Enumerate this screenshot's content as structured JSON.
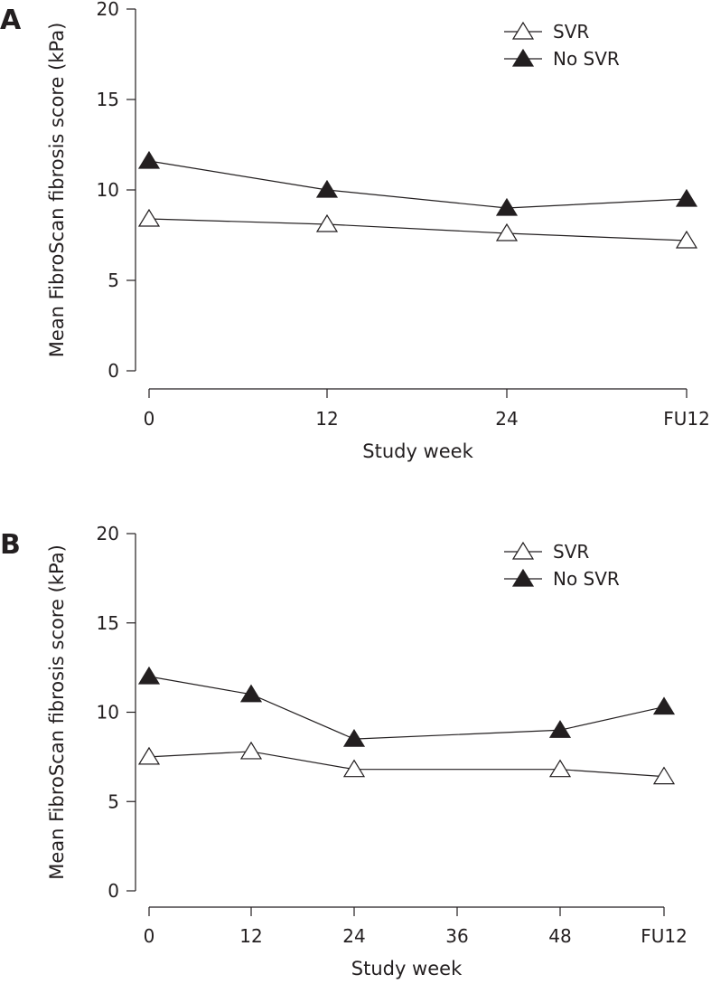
{
  "chart_data": [
    {
      "type": "line",
      "panel": "A",
      "xlabel": "Study week",
      "ylabel": "Mean FibroScan fibrosis score (kPa)",
      "ylim": [
        0,
        20
      ],
      "yticks": [
        "0",
        "5",
        "10",
        "15",
        "20"
      ],
      "categories": [
        "0",
        "12",
        "24",
        "FU12"
      ],
      "legend_position": "top-right",
      "series": [
        {
          "name": "SVR",
          "marker": "open-triangle",
          "values": [
            8.4,
            8.1,
            7.6,
            7.2
          ]
        },
        {
          "name": "No SVR",
          "marker": "filled-triangle",
          "values": [
            11.6,
            10.0,
            9.0,
            9.5
          ]
        }
      ]
    },
    {
      "type": "line",
      "panel": "B",
      "xlabel": "Study week",
      "ylabel": "Mean FibroScan fibrosis score (kPa)",
      "ylim": [
        0,
        20
      ],
      "yticks": [
        "0",
        "5",
        "10",
        "15",
        "20"
      ],
      "categories": [
        "0",
        "12",
        "24",
        "36",
        "48",
        "FU12"
      ],
      "legend_position": "top-right",
      "series": [
        {
          "name": "SVR",
          "marker": "open-triangle",
          "values": [
            7.5,
            7.8,
            6.8,
            null,
            6.8,
            6.4
          ]
        },
        {
          "name": "No SVR",
          "marker": "filled-triangle",
          "values": [
            12.0,
            11.0,
            8.5,
            null,
            9.0,
            10.3
          ]
        }
      ]
    }
  ]
}
